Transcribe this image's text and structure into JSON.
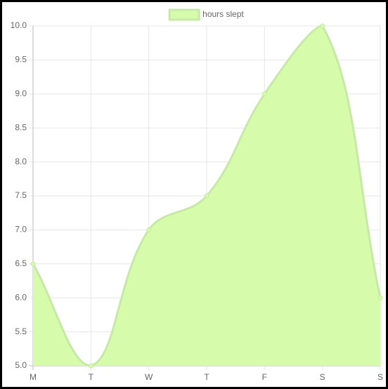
{
  "chart_data": {
    "type": "area",
    "legend_position": "top",
    "categories": [
      "M",
      "T",
      "W",
      "T",
      "F",
      "S",
      "S"
    ],
    "series": [
      {
        "name": "hours slept",
        "color": "#d6fcab",
        "border_color": "#c6e9a6",
        "values": [
          6.5,
          5.0,
          7.0,
          7.5,
          9.0,
          10.0,
          6.0
        ]
      }
    ],
    "ylim": [
      5,
      10
    ],
    "yticks": [
      {
        "value": 5,
        "label": "5.0"
      },
      {
        "value": 5.5,
        "label": "5.5"
      },
      {
        "value": 6,
        "label": "6.0"
      },
      {
        "value": 6.5,
        "label": "6.5"
      },
      {
        "value": 7,
        "label": "7.0"
      },
      {
        "value": 7.5,
        "label": "7.5"
      },
      {
        "value": 8,
        "label": "8.0"
      },
      {
        "value": 8.5,
        "label": "8.5"
      },
      {
        "value": 9,
        "label": "9.0"
      },
      {
        "value": 9.5,
        "label": "9.5"
      },
      {
        "value": 10,
        "label": "10.0"
      }
    ],
    "grid": true
  }
}
